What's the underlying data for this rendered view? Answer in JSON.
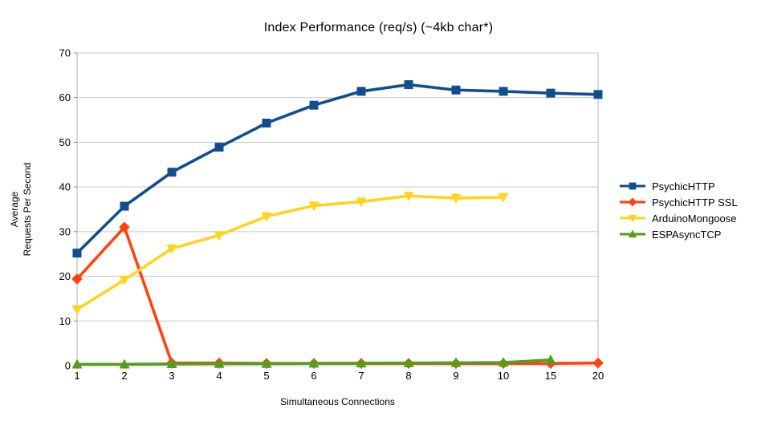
{
  "chart": {
    "title": "Index Performance (req/s) (~4kb char*)",
    "x_axis_title": "Simultaneous Connections",
    "y_axis_title": "Average\nRequests Per Second"
  },
  "chart_data": {
    "type": "line",
    "title": "Index Performance (req/s) (~4kb char*)",
    "xlabel": "Simultaneous Connections",
    "ylabel": "Average Requests Per Second",
    "categories": [
      "1",
      "2",
      "3",
      "4",
      "5",
      "6",
      "7",
      "8",
      "9",
      "10",
      "15",
      "20"
    ],
    "ylim": [
      0,
      70
    ],
    "ytick_step": 10,
    "grid": "horizontal",
    "legend_position": "right",
    "series": [
      {
        "name": "PsychicHTTP",
        "color": "#124D8F",
        "marker": "square",
        "values": [
          25.2,
          35.7,
          43.3,
          48.9,
          54.3,
          58.3,
          61.4,
          62.9,
          61.7,
          61.4,
          61.0,
          60.7
        ]
      },
      {
        "name": "PsychicHTTP SSL",
        "color": "#FF420E",
        "marker": "diamond",
        "values": [
          19.4,
          31.0,
          0.6,
          0.6,
          0.5,
          0.5,
          0.5,
          0.5,
          0.5,
          0.5,
          0.5,
          0.6
        ]
      },
      {
        "name": "ArduinoMongoose",
        "color": "#FFD320",
        "marker": "triangle-down",
        "values": [
          12.6,
          19.2,
          26.2,
          29.2,
          33.4,
          35.8,
          36.7,
          38.0,
          37.5,
          37.7,
          null,
          null
        ]
      },
      {
        "name": "ESPAsyncTCP",
        "color": "#579D1C",
        "marker": "triangle-up",
        "values": [
          0.3,
          0.3,
          0.4,
          0.45,
          0.45,
          0.5,
          0.55,
          0.6,
          0.65,
          0.7,
          1.3,
          null
        ]
      }
    ],
    "style": {
      "gridline_color": "#C5C5C5",
      "frame_color": "#B3B3B3",
      "tick_color": "#808080",
      "text_color": "#000000"
    }
  }
}
